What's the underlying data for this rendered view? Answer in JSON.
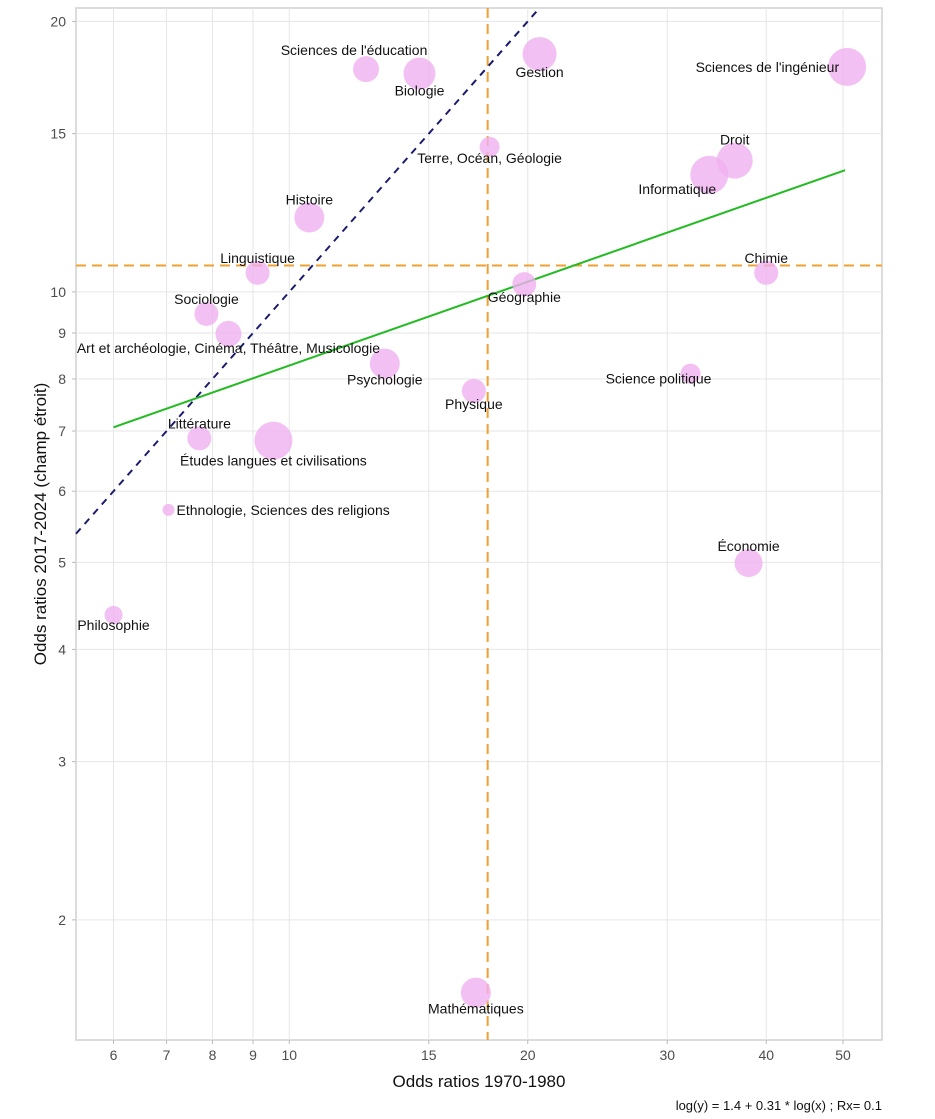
{
  "chart_data": {
    "type": "scatter",
    "title": "",
    "xlabel": "Odds ratios 1970-1980",
    "ylabel": "Odds ratios 2017-2024 (champ étroit)",
    "x_scale": "log",
    "y_scale": "log",
    "xlim": [
      5.38,
      56
    ],
    "ylim": [
      1.47,
      20.7
    ],
    "x_ticks": [
      6,
      7,
      8,
      9,
      10,
      15,
      20,
      30,
      40,
      50
    ],
    "y_ticks": [
      2,
      3,
      4,
      5,
      6,
      7,
      8,
      9,
      10,
      15,
      20
    ],
    "grid": true,
    "point_color": "#f0b0f0",
    "points": [
      {
        "label": "Sciences de l'éducation",
        "x": 12.5,
        "y": 17.7,
        "size": 13,
        "label_pos": "top-left"
      },
      {
        "label": "Biologie",
        "x": 14.6,
        "y": 17.5,
        "size": 16,
        "label_pos": "bottom"
      },
      {
        "label": "Gestion",
        "x": 20.7,
        "y": 18.4,
        "size": 17,
        "label_pos": "bottom"
      },
      {
        "label": "Sciences de l'ingénieur",
        "x": 50.6,
        "y": 17.8,
        "size": 19,
        "label_pos": "left"
      },
      {
        "label": "Terre, Océan, Géologie",
        "x": 17.9,
        "y": 14.5,
        "size": 10,
        "label_pos": "bottom"
      },
      {
        "label": "Droit",
        "x": 36.5,
        "y": 14.0,
        "size": 18,
        "label_pos": "top"
      },
      {
        "label": "Informatique",
        "x": 33.9,
        "y": 13.5,
        "size": 19,
        "label_pos": "bottom-left"
      },
      {
        "label": "Histoire",
        "x": 10.6,
        "y": 12.1,
        "size": 15,
        "label_pos": "top"
      },
      {
        "label": "Linguistique",
        "x": 9.12,
        "y": 10.5,
        "size": 12,
        "label_pos": "top"
      },
      {
        "label": "Chimie",
        "x": 40.0,
        "y": 10.5,
        "size": 12,
        "label_pos": "top"
      },
      {
        "label": "Géographie",
        "x": 19.8,
        "y": 10.2,
        "size": 12,
        "label_pos": "bottom"
      },
      {
        "label": "Sociologie",
        "x": 7.86,
        "y": 9.45,
        "size": 12,
        "label_pos": "top"
      },
      {
        "label": "Art et archéologie, Cinéma, Théâtre, Musicologie",
        "x": 8.38,
        "y": 8.98,
        "size": 13,
        "label_pos": "bottom"
      },
      {
        "label": "Psychologie",
        "x": 13.2,
        "y": 8.32,
        "size": 15,
        "label_pos": "bottom"
      },
      {
        "label": "Physique",
        "x": 17.1,
        "y": 7.76,
        "size": 12,
        "label_pos": "bottom"
      },
      {
        "label": "Science politique",
        "x": 32.1,
        "y": 8.11,
        "size": 10,
        "label_pos": "bottom-left"
      },
      {
        "label": "Littérature",
        "x": 7.7,
        "y": 6.87,
        "size": 12,
        "label_pos": "top"
      },
      {
        "label": "Études langues et civilisations",
        "x": 9.55,
        "y": 6.83,
        "size": 19,
        "label_pos": "bottom"
      },
      {
        "label": "Ethnologie, Sciences des religions",
        "x": 7.04,
        "y": 5.72,
        "size": 6,
        "label_pos": "right"
      },
      {
        "label": "Économie",
        "x": 38.0,
        "y": 4.99,
        "size": 14,
        "label_pos": "top"
      },
      {
        "label": "Philosophie",
        "x": 6.0,
        "y": 4.37,
        "size": 9,
        "label_pos": "bottom"
      },
      {
        "label": "Mathématiques",
        "x": 17.2,
        "y": 1.66,
        "size": 15,
        "label_pos": "bottom"
      }
    ],
    "reference_lines": [
      {
        "name": "median-x",
        "orientation": "vertical",
        "value": 17.8,
        "color": "#f0a030",
        "style": "dashed"
      },
      {
        "name": "median-y",
        "orientation": "horizontal",
        "value": 10.7,
        "color": "#f0a030",
        "style": "dashed"
      },
      {
        "name": "identity",
        "type": "y=x",
        "color": "#1a1a6e",
        "style": "dashed"
      }
    ],
    "regression": {
      "color": "#22bb22",
      "intercept": 1.4,
      "slope": 0.31,
      "x_range": [
        6,
        50.3
      ],
      "equation_text": "log(y) = 1.4 + 0.31 * log(x) ; Rx= 0.1"
    }
  }
}
